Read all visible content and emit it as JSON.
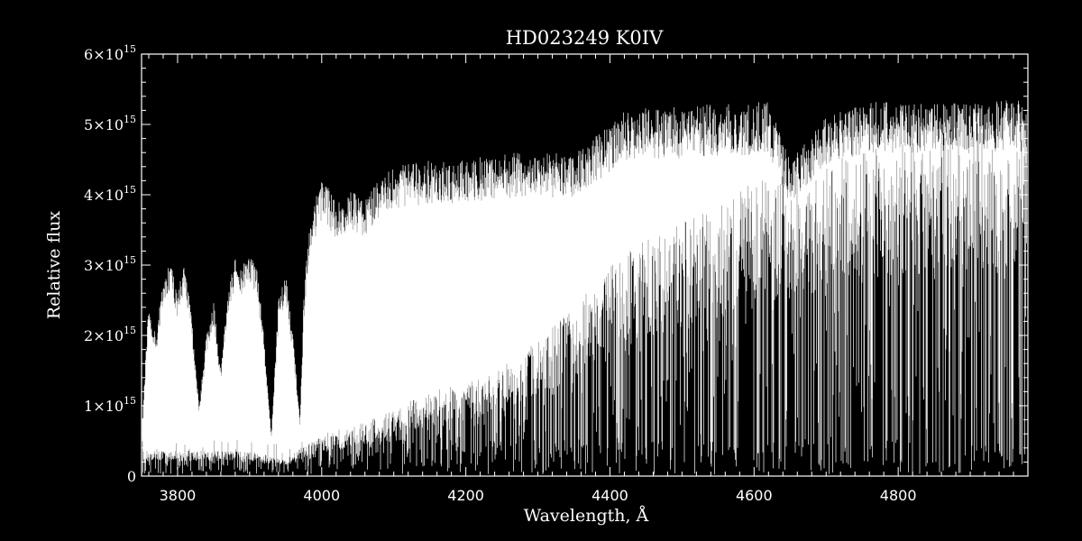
{
  "chart_data": {
    "type": "line",
    "title": "HD023249   K0IV",
    "xlabel": "Wavelength, Å",
    "ylabel": "Relative flux",
    "xlim": [
      3750,
      4980
    ],
    "ylim": [
      0,
      6000000000000000.0
    ],
    "x_ticks": [
      3800,
      4000,
      4200,
      4400,
      4600,
      4800
    ],
    "y_ticks": [
      {
        "value": 0,
        "mantissa": "0",
        "exp": ""
      },
      {
        "value": 1000000000000000.0,
        "mantissa": "1×10",
        "exp": "15"
      },
      {
        "value": 2000000000000000.0,
        "mantissa": "2×10",
        "exp": "15"
      },
      {
        "value": 3000000000000000.0,
        "mantissa": "3×10",
        "exp": "15"
      },
      {
        "value": 4000000000000000.0,
        "mantissa": "4×10",
        "exp": "15"
      },
      {
        "value": 5000000000000000.0,
        "mantissa": "5×10",
        "exp": "15"
      },
      {
        "value": 6000000000000000.0,
        "mantissa": "6×10",
        "exp": "15"
      }
    ],
    "series": [
      {
        "color": "#ffffff",
        "envelope_upper": {
          "x": [
            3750,
            3760,
            3770,
            3780,
            3790,
            3800,
            3810,
            3820,
            3830,
            3840,
            3850,
            3860,
            3870,
            3880,
            3890,
            3900,
            3910,
            3920,
            3930,
            3940,
            3950,
            3960,
            3970,
            3975,
            3980,
            3990,
            4000,
            4010,
            4020,
            4040,
            4060,
            4080,
            4100,
            4150,
            4200,
            4250,
            4300,
            4350,
            4400,
            4420,
            4450,
            4500,
            4550,
            4600,
            4620,
            4650,
            4700,
            4750,
            4800,
            4850,
            4900,
            4950,
            4980
          ],
          "y": [
            600000000000000.0,
            2500000000000000.0,
            2000000000000000.0,
            2800000000000000.0,
            3100000000000000.0,
            2600000000000000.0,
            3100000000000000.0,
            2200000000000000.0,
            1000000000000000.0,
            2000000000000000.0,
            2500000000000000.0,
            1500000000000000.0,
            2700000000000000.0,
            3100000000000000.0,
            3000000000000000.0,
            3200000000000000.0,
            3000000000000000.0,
            2000000000000000.0,
            600000000000000.0,
            2500000000000000.0,
            2900000000000000.0,
            2000000000000000.0,
            800000000000000.0,
            2500000000000000.0,
            3300000000000000.0,
            3900000000000000.0,
            4200000000000000.0,
            4100000000000000.0,
            3900000000000000.0,
            4100000000000000.0,
            3900000000000000.0,
            4300000000000000.0,
            4400000000000000.0,
            4500000000000000.0,
            4500000000000000.0,
            4600000000000000.0,
            4600000000000000.0,
            4600000000000000.0,
            5000000000000000.0,
            5200000000000000.0,
            5250000000000000.0,
            5250000000000000.0,
            5300000000000000.0,
            5300000000000000.0,
            5350000000000000.0,
            4500000000000000.0,
            5100000000000000.0,
            5300000000000000.0,
            5350000000000000.0,
            5300000000000000.0,
            5300000000000000.0,
            5350000000000000.0,
            5350000000000000.0
          ]
        },
        "envelope_lower": {
          "x": [
            3750,
            3800,
            3850,
            3900,
            3950,
            4000,
            4050,
            4100,
            4150,
            4200,
            4250,
            4300,
            4350,
            4400,
            4450,
            4500,
            4550,
            4600,
            4650,
            4700,
            4750,
            4800,
            4850,
            4900,
            4950,
            4980
          ],
          "y": [
            300000000000000.0,
            300000000000000.0,
            300000000000000.0,
            300000000000000.0,
            200000000000000.0,
            500000000000000.0,
            600000000000000.0,
            800000000000000.0,
            1000000000000000.0,
            1100000000000000.0,
            1300000000000000.0,
            1600000000000000.0,
            2000000000000000.0,
            2500000000000000.0,
            2800000000000000.0,
            3000000000000000.0,
            3200000000000000.0,
            3500000000000000.0,
            3600000000000000.0,
            3700000000000000.0,
            3900000000000000.0,
            4000000000000000.0,
            4100000000000000.0,
            4200000000000000.0,
            4200000000000000.0,
            4200000000000000.0
          ]
        }
      }
    ]
  }
}
